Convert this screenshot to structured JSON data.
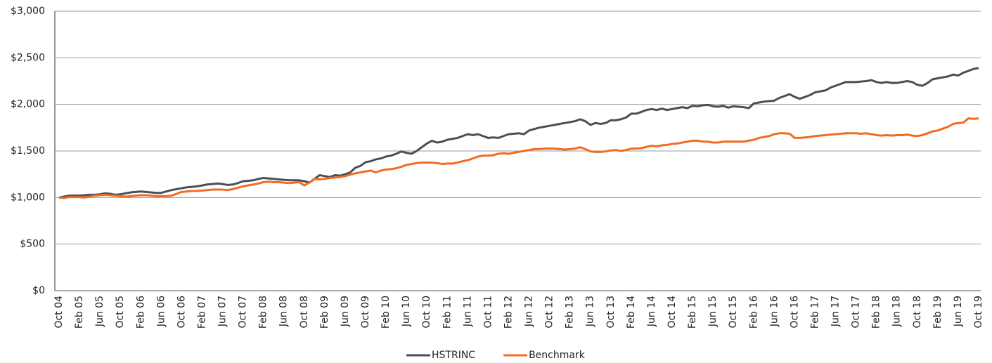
{
  "chart_data": {
    "type": "line",
    "categories": [
      "Oct 04",
      null,
      null,
      null,
      "Feb 05",
      null,
      null,
      null,
      "Jun 05",
      null,
      null,
      null,
      "Oct 05",
      null,
      null,
      null,
      "Feb 06",
      null,
      null,
      null,
      "Jun 06",
      null,
      null,
      null,
      "Oct 06",
      null,
      null,
      null,
      "Feb 07",
      null,
      null,
      null,
      "Jun 07",
      null,
      null,
      null,
      "Oct 07",
      null,
      null,
      null,
      "Feb 08",
      null,
      null,
      null,
      "Jun 08",
      null,
      null,
      null,
      "Oct 08",
      null,
      null,
      null,
      "Feb 09",
      null,
      null,
      null,
      "Jun 09",
      null,
      null,
      null,
      "Oct 09",
      null,
      null,
      null,
      "Feb 10",
      null,
      null,
      null,
      "Jun 10",
      null,
      null,
      null,
      "Oct 10",
      null,
      null,
      null,
      "Feb 11",
      null,
      null,
      null,
      "Jun 11",
      null,
      null,
      null,
      "Oct 11",
      null,
      null,
      null,
      "Feb 12",
      null,
      null,
      null,
      "Jun 12",
      null,
      null,
      null,
      "Oct 12",
      null,
      null,
      null,
      "Feb 13",
      null,
      null,
      null,
      "Jun 13",
      null,
      null,
      null,
      "Oct 13",
      null,
      null,
      null,
      "Feb 14",
      null,
      null,
      null,
      "Jun 14",
      null,
      null,
      null,
      "Oct 14",
      null,
      null,
      null,
      "Feb 15",
      null,
      null,
      null,
      "Jun 15",
      null,
      null,
      null,
      "Oct 15",
      null,
      null,
      null,
      "Feb 16",
      null,
      null,
      null,
      "Jun 16",
      null,
      null,
      null,
      "Oct 16",
      null,
      null,
      null,
      "Feb 17",
      null,
      null,
      null,
      "Jun 17",
      null,
      null,
      null,
      "Oct 17",
      null,
      null,
      null,
      "Feb 18",
      null,
      null,
      null,
      "Jun 18",
      null,
      null,
      null,
      "Oct 18",
      null,
      null,
      null,
      "Feb 19",
      null,
      null,
      null,
      "Jun 19",
      null,
      null,
      null,
      "Oct 19"
    ],
    "series": [
      {
        "name": "HSTRINC",
        "color": "#4a4f55",
        "values": [
          1000,
          1010,
          1020,
          1020,
          1020,
          1025,
          1030,
          1030,
          1035,
          1045,
          1040,
          1030,
          1035,
          1045,
          1055,
          1060,
          1065,
          1060,
          1055,
          1050,
          1050,
          1065,
          1080,
          1090,
          1100,
          1110,
          1115,
          1120,
          1130,
          1140,
          1145,
          1150,
          1145,
          1135,
          1140,
          1155,
          1175,
          1180,
          1185,
          1200,
          1210,
          1205,
          1200,
          1195,
          1190,
          1185,
          1185,
          1185,
          1175,
          1160,
          1200,
          1240,
          1230,
          1220,
          1240,
          1235,
          1250,
          1270,
          1320,
          1340,
          1380,
          1390,
          1410,
          1420,
          1440,
          1450,
          1470,
          1495,
          1480,
          1470,
          1500,
          1540,
          1580,
          1610,
          1590,
          1600,
          1620,
          1630,
          1640,
          1660,
          1680,
          1670,
          1680,
          1660,
          1640,
          1645,
          1640,
          1660,
          1680,
          1685,
          1690,
          1680,
          1720,
          1735,
          1750,
          1760,
          1770,
          1780,
          1790,
          1800,
          1810,
          1820,
          1840,
          1820,
          1780,
          1800,
          1790,
          1800,
          1830,
          1830,
          1840,
          1860,
          1900,
          1900,
          1920,
          1940,
          1950,
          1940,
          1955,
          1940,
          1950,
          1960,
          1970,
          1960,
          1985,
          1980,
          1990,
          1995,
          1980,
          1975,
          1985,
          1965,
          1980,
          1975,
          1970,
          1960,
          2010,
          2020,
          2030,
          2035,
          2040,
          2070,
          2090,
          2110,
          2080,
          2060,
          2080,
          2100,
          2130,
          2140,
          2150,
          2180,
          2200,
          2220,
          2240,
          2240,
          2240,
          2245,
          2250,
          2260,
          2240,
          2230,
          2240,
          2230,
          2230,
          2240,
          2250,
          2240,
          2210,
          2200,
          2230,
          2270,
          2280,
          2290,
          2300,
          2320,
          2310,
          2340,
          2360,
          2380,
          2390
        ]
      },
      {
        "name": "Benchmark",
        "color": "#f26b21",
        "values": [
          1000,
          995,
          1005,
          1005,
          1005,
          1000,
          1010,
          1020,
          1025,
          1030,
          1025,
          1020,
          1015,
          1010,
          1015,
          1020,
          1025,
          1025,
          1020,
          1015,
          1015,
          1015,
          1020,
          1040,
          1060,
          1065,
          1070,
          1070,
          1075,
          1080,
          1085,
          1085,
          1085,
          1080,
          1090,
          1105,
          1120,
          1130,
          1140,
          1150,
          1165,
          1170,
          1165,
          1165,
          1160,
          1155,
          1160,
          1165,
          1130,
          1160,
          1200,
          1195,
          1200,
          1210,
          1215,
          1220,
          1230,
          1245,
          1260,
          1270,
          1280,
          1290,
          1270,
          1290,
          1300,
          1305,
          1315,
          1330,
          1350,
          1360,
          1370,
          1375,
          1375,
          1375,
          1370,
          1360,
          1365,
          1365,
          1375,
          1390,
          1400,
          1420,
          1440,
          1450,
          1450,
          1455,
          1470,
          1475,
          1470,
          1480,
          1490,
          1500,
          1510,
          1520,
          1520,
          1525,
          1525,
          1525,
          1520,
          1515,
          1520,
          1525,
          1540,
          1520,
          1495,
          1490,
          1490,
          1495,
          1505,
          1510,
          1500,
          1510,
          1525,
          1525,
          1530,
          1545,
          1555,
          1550,
          1560,
          1565,
          1575,
          1580,
          1590,
          1600,
          1610,
          1610,
          1600,
          1600,
          1590,
          1590,
          1600,
          1600,
          1600,
          1600,
          1600,
          1610,
          1620,
          1640,
          1650,
          1660,
          1680,
          1690,
          1690,
          1685,
          1640,
          1640,
          1645,
          1650,
          1660,
          1665,
          1670,
          1675,
          1680,
          1685,
          1690,
          1690,
          1690,
          1685,
          1690,
          1680,
          1670,
          1665,
          1670,
          1665,
          1670,
          1670,
          1675,
          1665,
          1660,
          1670,
          1690,
          1710,
          1720,
          1740,
          1760,
          1790,
          1800,
          1805,
          1850,
          1845,
          1850
        ]
      }
    ],
    "ylim": [
      0,
      3000
    ],
    "yticks": [
      {
        "value": 0,
        "label": "$0"
      },
      {
        "value": 500,
        "label": "$500"
      },
      {
        "value": 1000,
        "label": "$1,000"
      },
      {
        "value": 1500,
        "label": "$1,500"
      },
      {
        "value": 2000,
        "label": "$2,000"
      },
      {
        "value": 2500,
        "label": "$2,500"
      },
      {
        "value": 3000,
        "label": "$3,000"
      }
    ],
    "grid": true
  }
}
